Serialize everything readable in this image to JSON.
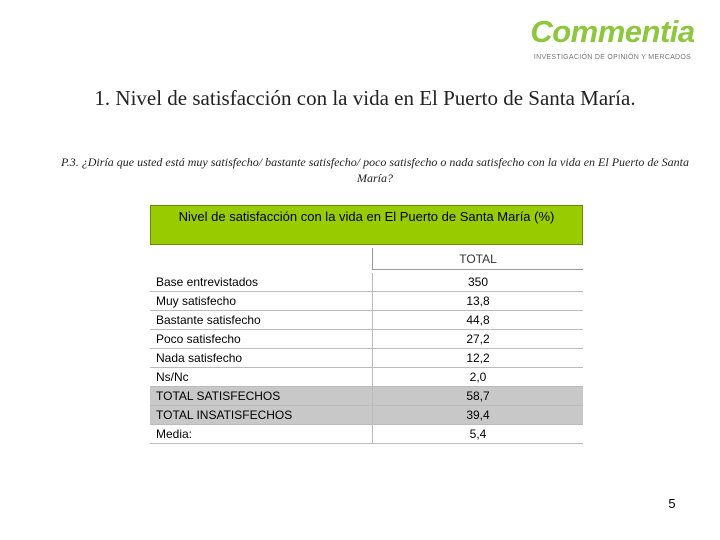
{
  "header": {
    "logo": "Commentia",
    "tagline": "INVESTIGACIÓN DE OPINIÓN Y MERCADOS"
  },
  "title": "1. Nivel de satisfacción con la vida en El Puerto de Santa María.",
  "question": "P.3. ¿Diría que usted está muy satisfecho/ bastante satisfecho/ poco satisfecho o nada satisfecho con la vida en El Puerto de Santa María?",
  "table": {
    "title": "Nivel de satisfacción con la vida en El Puerto de Santa María (%)",
    "column_header": "TOTAL",
    "rows": [
      [
        "Base entrevistados",
        "350"
      ],
      [
        "Muy satisfecho",
        "13,8"
      ],
      [
        "Bastante satisfecho",
        "44,8"
      ],
      [
        "Poco satisfecho",
        "27,2"
      ],
      [
        "Nada satisfecho",
        "12,2"
      ],
      [
        "Ns/Nc",
        "2,0"
      ],
      [
        "TOTAL SATISFECHOS",
        "58,7"
      ],
      [
        "TOTAL INSATISFECHOS",
        "39,4"
      ],
      [
        "Media:",
        "5,4"
      ]
    ]
  },
  "page_number": "5"
}
